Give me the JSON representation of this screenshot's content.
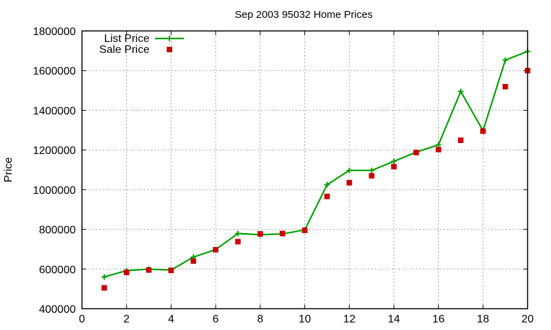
{
  "chart_data": {
    "type": "line",
    "title": "Sep 2003 95032 Home Prices",
    "xlabel": "",
    "ylabel": "Price",
    "xlim": [
      0,
      20
    ],
    "ylim": [
      400000,
      1800000
    ],
    "xticks": [
      0,
      2,
      4,
      6,
      8,
      10,
      12,
      14,
      16,
      18,
      20
    ],
    "yticks": [
      400000,
      600000,
      800000,
      1000000,
      1200000,
      1400000,
      1600000,
      1800000
    ],
    "grid": true,
    "legend_position": "top-left",
    "x": [
      1,
      2,
      3,
      4,
      5,
      6,
      7,
      8,
      9,
      10,
      11,
      12,
      13,
      14,
      15,
      16,
      17,
      18,
      19,
      20
    ],
    "series": [
      {
        "name": "List Price",
        "style": "linespoints",
        "marker": "plus",
        "color": "#00a000",
        "values": [
          560000,
          592000,
          599000,
          595000,
          660000,
          698000,
          779000,
          773000,
          777000,
          797000,
          1025000,
          1097000,
          1097000,
          1143000,
          1189000,
          1226000,
          1495000,
          1297000,
          1653000,
          1697000
        ]
      },
      {
        "name": "Sale Price",
        "style": "points",
        "marker": "square",
        "color": "#cc0000",
        "values": [
          505000,
          583000,
          595000,
          593000,
          640000,
          697000,
          738000,
          777000,
          779000,
          795000,
          966000,
          1035000,
          1070000,
          1116000,
          1187000,
          1202000,
          1249000,
          1295000,
          1519000,
          1600000
        ]
      }
    ]
  }
}
